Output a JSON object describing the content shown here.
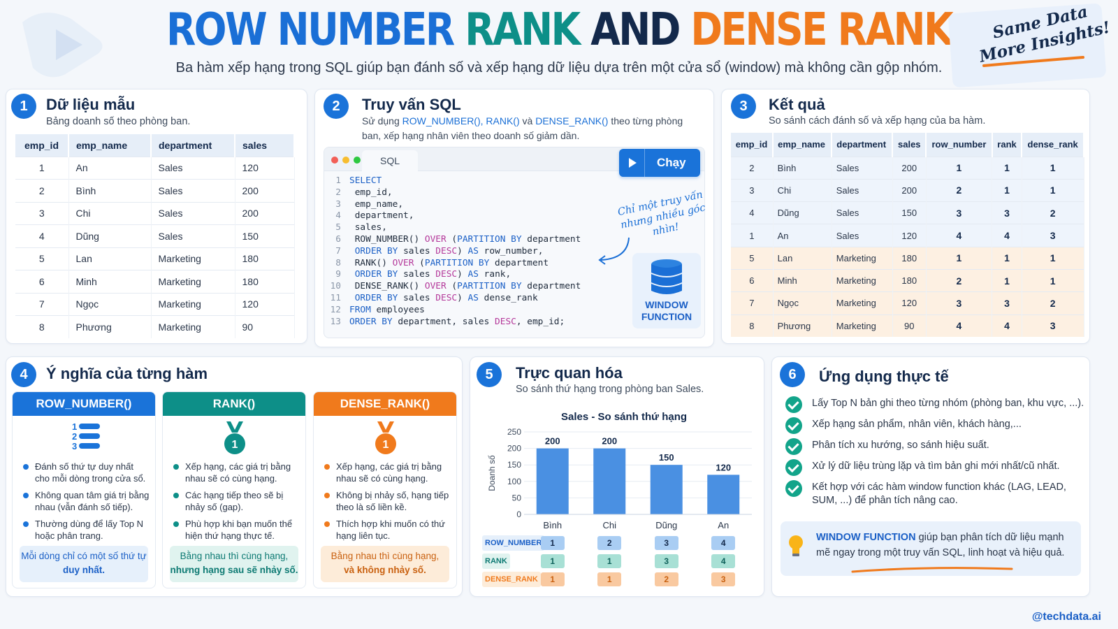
{
  "header": {
    "title_part1": "ROW NUMBER",
    "title_part2": "RANK",
    "title_part3": "AND",
    "title_part4": "DENSE RANK",
    "subtitle": "Ba hàm xếp hạng trong SQL giúp bạn đánh số và xếp hạng dữ liệu dựa trên một cửa sổ (window) mà không cần gộp nhóm.",
    "note_line1": "Same Data",
    "note_line2": "More Insights!"
  },
  "section1": {
    "number": "1",
    "title": "Dữ liệu mẫu",
    "subtitle": "Bảng doanh số theo phòng ban.",
    "columns": [
      "emp_id",
      "emp_name",
      "department",
      "sales"
    ],
    "rows": [
      [
        "1",
        "An",
        "Sales",
        "120"
      ],
      [
        "2",
        "Bình",
        "Sales",
        "200"
      ],
      [
        "3",
        "Chi",
        "Sales",
        "200"
      ],
      [
        "4",
        "Dũng",
        "Sales",
        "150"
      ],
      [
        "5",
        "Lan",
        "Marketing",
        "180"
      ],
      [
        "6",
        "Minh",
        "Marketing",
        "180"
      ],
      [
        "7",
        "Ngọc",
        "Marketing",
        "120"
      ],
      [
        "8",
        "Phương",
        "Marketing",
        "90"
      ]
    ]
  },
  "section2": {
    "number": "2",
    "title": "Truy vấn SQL",
    "subtitle_pre": "Sử dụng ",
    "subtitle_fns": "ROW_NUMBER(), RANK()",
    "subtitle_mid": " và ",
    "subtitle_fn3": "DENSE_RANK()",
    "subtitle_post": " theo từng phòng ban, xếp hạng nhân viên theo doanh số giảm dần.",
    "tab_label": "SQL",
    "run_label": "Chạy",
    "handnote_line1": "Chỉ một truy vấn",
    "handnote_line2": "nhưng nhiều góc nhìn!",
    "badge_line1": "WINDOW",
    "badge_line2": "FUNCTION",
    "line_numbers": [
      "1",
      "2",
      "3",
      "4",
      "5",
      "6",
      "7",
      "8",
      "9",
      "10",
      "11",
      "12",
      "13"
    ]
  },
  "section3": {
    "number": "3",
    "title": "Kết quả",
    "subtitle": "So sánh cách đánh số và xếp hạng của ba hàm.",
    "columns": [
      "emp_id",
      "emp_name",
      "department",
      "sales",
      "row_number",
      "rank",
      "dense_rank"
    ],
    "rows": [
      [
        "2",
        "Bình",
        "Sales",
        "200",
        "1",
        "1",
        "1"
      ],
      [
        "3",
        "Chi",
        "Sales",
        "200",
        "2",
        "1",
        "1"
      ],
      [
        "4",
        "Dũng",
        "Sales",
        "150",
        "3",
        "3",
        "2"
      ],
      [
        "1",
        "An",
        "Sales",
        "120",
        "4",
        "4",
        "3"
      ],
      [
        "5",
        "Lan",
        "Marketing",
        "180",
        "1",
        "1",
        "1"
      ],
      [
        "6",
        "Minh",
        "Marketing",
        "180",
        "2",
        "1",
        "1"
      ],
      [
        "7",
        "Ngọc",
        "Marketing",
        "120",
        "3",
        "3",
        "2"
      ],
      [
        "8",
        "Phương",
        "Marketing",
        "90",
        "4",
        "4",
        "3"
      ]
    ]
  },
  "section4": {
    "number": "4",
    "title": "Ý nghĩa của từng hàm",
    "cards": [
      {
        "name": "ROW_NUMBER()",
        "color": "#1a73d9",
        "bullets": [
          "Đánh số thứ tự duy nhất cho mỗi dòng trong cửa sổ.",
          "Không quan tâm giá trị bằng nhau (vẫn đánh số tiếp).",
          "Thường dùng để lấy Top N hoặc phân trang."
        ],
        "note_line1": "Mỗi dòng chỉ có một số thứ tự",
        "note_line2": "duy nhất."
      },
      {
        "name": "RANK()",
        "color": "#0d8f88",
        "bullets": [
          "Xếp hạng, các giá trị bằng nhau sẽ có cùng hạng.",
          "Các hạng tiếp theo sẽ bị nhảy số (gap).",
          "Phù hợp khi bạn muốn thể hiện thứ hạng thực tế."
        ],
        "note_line1": "Bằng nhau thì cùng hạng,",
        "note_line2": "nhưng hạng sau sẽ nhảy số."
      },
      {
        "name": "DENSE_RANK()",
        "color": "#f07a1c",
        "bullets": [
          "Xếp hạng, các giá trị bằng nhau sẽ có cùng hạng.",
          "Không bị nhảy số, hạng tiếp theo là số liền kề.",
          "Thích hợp khi muốn có thứ hạng liên tục."
        ],
        "note_line1": "Bằng nhau thì cùng hạng,",
        "note_line2": "và không nhảy số."
      }
    ]
  },
  "section5": {
    "number": "5",
    "title": "Trực quan hóa",
    "subtitle": "So sánh thứ hạng trong phòng ban Sales.",
    "rank_rows": [
      {
        "label": "ROW_NUMBER",
        "values": [
          "1",
          "2",
          "3",
          "4"
        ]
      },
      {
        "label": "RANK",
        "values": [
          "1",
          "1",
          "3",
          "4"
        ]
      },
      {
        "label": "DENSE_RANK",
        "values": [
          "1",
          "1",
          "2",
          "3"
        ]
      }
    ]
  },
  "chart_data": {
    "type": "bar",
    "title": "Sales - So sánh thứ hạng",
    "ylabel": "Doanh số",
    "xlabel": "",
    "categories": [
      "Bình",
      "Chi",
      "Dũng",
      "An"
    ],
    "values": [
      200,
      200,
      150,
      120
    ],
    "ylim": [
      0,
      250
    ],
    "yticks": [
      0,
      50,
      100,
      150,
      200,
      250
    ],
    "bar_color": "#4a90e2",
    "grid": true
  },
  "section6": {
    "number": "6",
    "title": "Ứng dụng thực tế",
    "items": [
      "Lấy Top N bản ghi theo từng nhóm (phòng ban, khu vực, ...).",
      "Xếp hạng sản phẩm, nhân viên, khách hàng,...",
      "Phân tích xu hướng, so sánh hiệu suất.",
      "Xử lý dữ liệu trùng lặp và tìm bản ghi mới nhất/cũ nhất.",
      "Kết hợp với các hàm window function khác (LAG, LEAD, SUM, ...) để phân tích nâng cao."
    ],
    "tip_highlight": "WINDOW FUNCTION",
    "tip_text": " giúp bạn phân tích dữ liệu mạnh mẽ ngay trong một truy vấn SQL, linh hoạt và hiệu quả."
  },
  "footer": {
    "handle": "@techdata.ai"
  },
  "colors": {
    "blue": "#1a73d9",
    "teal": "#0d8f88",
    "orange": "#f07a1c",
    "navy": "#13294b",
    "check": "#12a48a"
  }
}
